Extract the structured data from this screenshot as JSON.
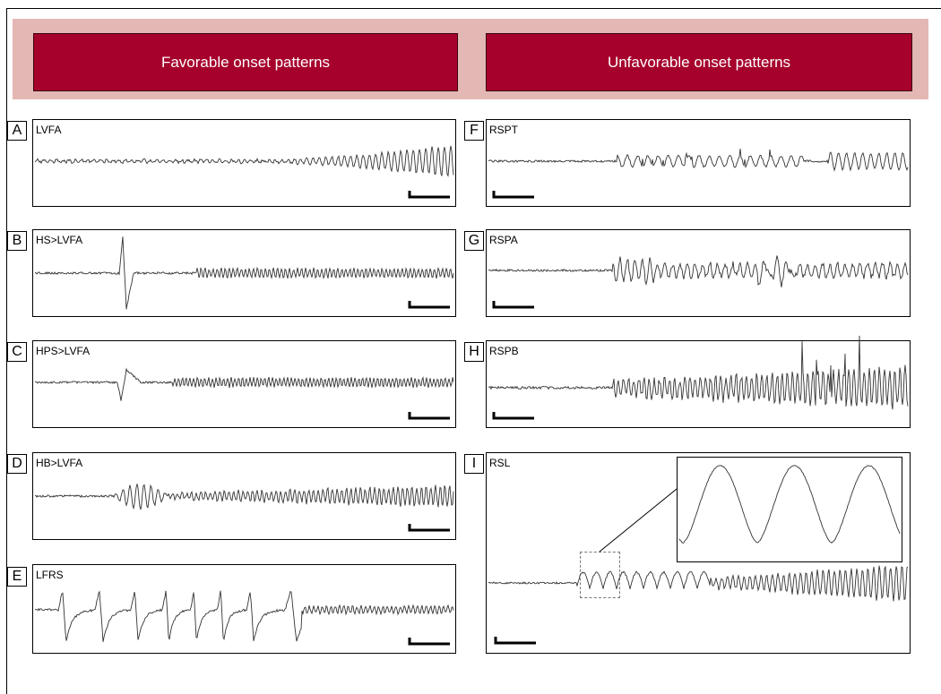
{
  "headers": {
    "favorable": "Favorable onset patterns",
    "unfavorable": "Unfavorable onset patterns"
  },
  "panels": {
    "A": {
      "letter": "A",
      "label": "LVFA"
    },
    "B": {
      "letter": "B",
      "label": "HS>LVFA"
    },
    "C": {
      "letter": "C",
      "label": "HPS>LVFA"
    },
    "D": {
      "letter": "D",
      "label": "HB>LVFA"
    },
    "E": {
      "letter": "E",
      "label": "LFRS"
    },
    "F": {
      "letter": "F",
      "label": "RSPT"
    },
    "G": {
      "letter": "G",
      "label": "RSPA"
    },
    "H": {
      "letter": "H",
      "label": "RSPB"
    },
    "I": {
      "letter": "I",
      "label": "RSL"
    }
  },
  "colors": {
    "banner": "#e3b7b3",
    "header": "#a6002c",
    "trace": "#333333"
  }
}
